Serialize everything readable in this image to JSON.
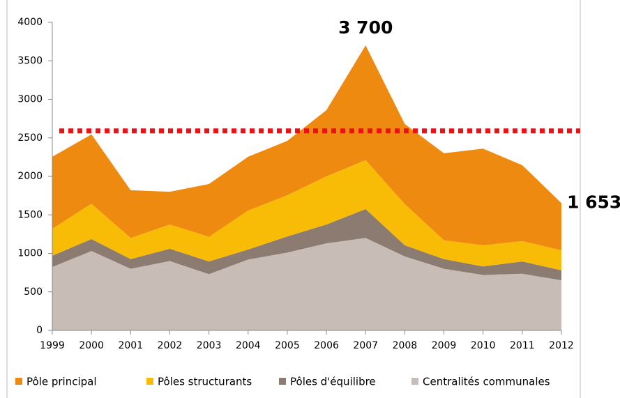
{
  "chart_data": {
    "type": "stacked_area",
    "categories": [
      "1999",
      "2000",
      "2001",
      "2002",
      "2003",
      "2004",
      "2005",
      "2006",
      "2007",
      "2008",
      "2009",
      "2010",
      "2011",
      "2012"
    ],
    "series": [
      {
        "name": "Pôle principal",
        "color": "#ef8a10",
        "values": [
          935,
          900,
          620,
          425,
          685,
          700,
          705,
          860,
          1490,
          1040,
          1130,
          1255,
          985,
          613
        ]
      },
      {
        "name": "Pôles structurants",
        "color": "#f9bc06",
        "values": [
          350,
          460,
          275,
          315,
          320,
          505,
          535,
          625,
          635,
          535,
          245,
          275,
          265,
          260
        ]
      },
      {
        "name": "Pôles d'équilibre",
        "color": "#8c7b70",
        "values": [
          147,
          155,
          125,
          160,
          165,
          130,
          210,
          245,
          375,
          145,
          125,
          110,
          160,
          130
        ]
      },
      {
        "name": "Centralités communales",
        "color": "#c8bcb6",
        "values": [
          823,
          1030,
          800,
          900,
          730,
          920,
          1010,
          1130,
          1200,
          960,
          800,
          720,
          735,
          650
        ]
      }
    ],
    "ylim": [
      0,
      4000
    ],
    "yticks": [
      0,
      500,
      1000,
      1500,
      2000,
      2500,
      3000,
      3500,
      4000
    ],
    "reference_line": {
      "value": 2590,
      "color": "#ee1111"
    },
    "annotations": [
      {
        "label": "3 700",
        "category": 8,
        "value": 3700
      },
      {
        "label": "1 653",
        "category": 13,
        "value": 1653
      }
    ],
    "legend": "bottom"
  }
}
